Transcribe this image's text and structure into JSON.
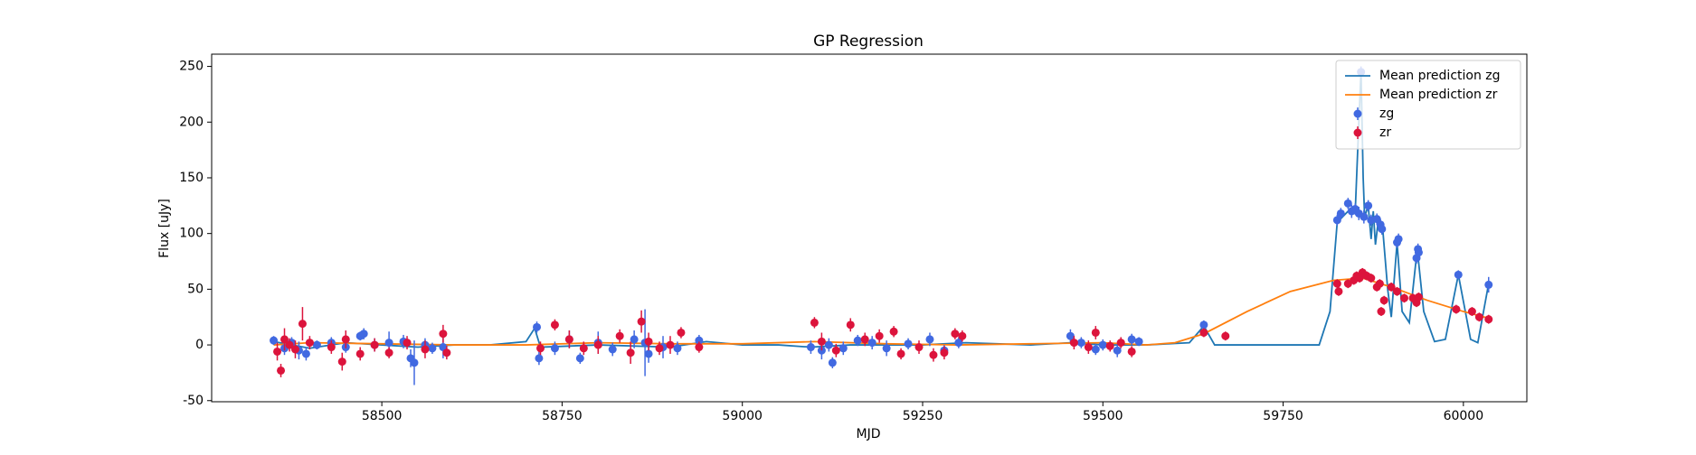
{
  "chart_data": {
    "type": "line",
    "title": "GP Regression",
    "xlabel": "MJD",
    "ylabel": "Flux [uJy]",
    "xlim": [
      58264,
      60088
    ],
    "ylim": [
      -51,
      261
    ],
    "xticks": [
      58500,
      58750,
      59000,
      59250,
      59500,
      59750,
      60000
    ],
    "yticks": [
      -50,
      0,
      50,
      100,
      150,
      200,
      250
    ],
    "legend": "upper right",
    "series": [
      {
        "name": "Mean prediction zg",
        "type": "line",
        "color": "#1f77b4",
        "x": [
          58350,
          58400,
          58450,
          58500,
          58550,
          58600,
          58650,
          58700,
          58712,
          58720,
          58800,
          58900,
          58950,
          59000,
          59050,
          59095,
          59150,
          59250,
          59310,
          59400,
          59455,
          59500,
          59560,
          59620,
          59640,
          59655,
          59700,
          59800,
          59815,
          59825,
          59840,
          59850,
          59855,
          59858,
          59861,
          59863,
          59868,
          59872,
          59875,
          59878,
          59882,
          59888,
          59895,
          59900,
          59908,
          59915,
          59925,
          59936,
          59945,
          59960,
          59975,
          59993,
          60010,
          60020,
          60035
        ],
        "values": [
          3,
          -3,
          2,
          0,
          -2,
          0,
          0,
          3,
          15,
          -2,
          0,
          -2,
          3,
          0,
          0,
          -2,
          0,
          0,
          2,
          0,
          2,
          0,
          0,
          2,
          17,
          0,
          0,
          0,
          30,
          110,
          120,
          120,
          200,
          245,
          150,
          115,
          125,
          95,
          120,
          90,
          112,
          105,
          50,
          25,
          92,
          30,
          20,
          86,
          30,
          3,
          5,
          63,
          5,
          2,
          55
        ]
      },
      {
        "name": "Mean prediction zr",
        "type": "line",
        "color": "#ff7f0e",
        "x": [
          58350,
          58400,
          58500,
          58600,
          58700,
          58800,
          58900,
          59000,
          59100,
          59200,
          59300,
          59400,
          59500,
          59560,
          59600,
          59640,
          59700,
          59760,
          59820,
          59860,
          59900,
          59950,
          60000,
          60035
        ],
        "values": [
          0,
          2,
          1,
          0,
          0,
          2,
          1,
          1,
          3,
          1,
          0,
          1,
          2,
          0,
          2,
          10,
          30,
          48,
          58,
          60,
          52,
          40,
          30,
          24
        ]
      },
      {
        "name": "zg",
        "type": "errorbar",
        "color": "#4169e1",
        "x": [
          58350,
          58365,
          58375,
          58385,
          58395,
          58410,
          58430,
          58450,
          58470,
          58475,
          58490,
          58510,
          58530,
          58540,
          58545,
          58560,
          58570,
          58585,
          58715,
          58718,
          58740,
          58760,
          58775,
          58800,
          58820,
          58850,
          58865,
          58870,
          58890,
          58910,
          58940,
          59095,
          59110,
          59120,
          59125,
          59140,
          59160,
          59180,
          59200,
          59230,
          59260,
          59280,
          59300,
          59455,
          59470,
          59490,
          59500,
          59520,
          59540,
          59550,
          59640,
          59825,
          59830,
          59840,
          59845,
          59850,
          59855,
          59858,
          59862,
          59868,
          59872,
          59880,
          59885,
          59887,
          59908,
          59910,
          59935,
          59937,
          59938,
          59993,
          60035
        ],
        "values": [
          4,
          -3,
          2,
          -5,
          -8,
          0,
          2,
          -2,
          8,
          10,
          0,
          2,
          3,
          -12,
          -16,
          0,
          -3,
          -2,
          16,
          -12,
          -3,
          5,
          -12,
          2,
          -4,
          5,
          2,
          -8,
          -2,
          -3,
          4,
          -2,
          -5,
          0,
          -16,
          -3,
          4,
          2,
          -3,
          1,
          5,
          -5,
          2,
          8,
          2,
          -4,
          0,
          -5,
          5,
          3,
          18,
          112,
          118,
          127,
          120,
          122,
          118,
          245,
          115,
          125,
          112,
          113,
          108,
          104,
          92,
          95,
          78,
          86,
          83,
          63,
          54
        ],
        "errors": [
          4,
          6,
          5,
          8,
          6,
          4,
          5,
          5,
          4,
          5,
          6,
          10,
          6,
          8,
          20,
          6,
          5,
          10,
          5,
          6,
          6,
          8,
          5,
          10,
          6,
          8,
          30,
          8,
          10,
          6,
          5,
          6,
          8,
          6,
          5,
          6,
          5,
          6,
          7,
          5,
          6,
          5,
          5,
          6,
          5,
          5,
          5,
          6,
          5,
          4,
          4,
          5,
          5,
          5,
          6,
          5,
          6,
          5,
          6,
          5,
          5,
          5,
          5,
          5,
          5,
          5,
          5,
          5,
          5,
          4,
          7
        ]
      },
      {
        "name": "zr",
        "type": "errorbar",
        "color": "#dc143c",
        "x": [
          58355,
          58360,
          58365,
          58372,
          58380,
          58390,
          58400,
          58430,
          58445,
          58450,
          58470,
          58490,
          58510,
          58535,
          58560,
          58585,
          58590,
          58720,
          58740,
          58760,
          58780,
          58800,
          58830,
          58845,
          58860,
          58870,
          58885,
          58900,
          58915,
          58940,
          59100,
          59110,
          59130,
          59150,
          59170,
          59190,
          59210,
          59220,
          59245,
          59265,
          59280,
          59295,
          59305,
          59460,
          59480,
          59490,
          59510,
          59525,
          59540,
          59640,
          59670,
          59825,
          59827,
          59840,
          59848,
          59852,
          59856,
          59860,
          59866,
          59872,
          59880,
          59884,
          59886,
          59890,
          59900,
          59908,
          59918,
          59930,
          59935,
          59938,
          59990,
          60012,
          60022,
          60035
        ],
        "values": [
          -6,
          -23,
          5,
          0,
          -4,
          19,
          2,
          -2,
          -15,
          5,
          -8,
          0,
          -7,
          2,
          -4,
          10,
          -7,
          -3,
          18,
          5,
          -3,
          0,
          8,
          -7,
          21,
          3,
          -3,
          0,
          11,
          -2,
          20,
          3,
          -5,
          18,
          5,
          8,
          12,
          -8,
          -2,
          -9,
          -7,
          10,
          8,
          2,
          -2,
          11,
          -1,
          2,
          -6,
          11,
          8,
          55,
          48,
          55,
          58,
          62,
          60,
          65,
          62,
          60,
          52,
          55,
          30,
          40,
          52,
          48,
          42,
          42,
          38,
          43,
          32,
          30,
          25,
          23
        ],
        "errors": [
          8,
          6,
          10,
          6,
          8,
          15,
          6,
          6,
          8,
          8,
          6,
          6,
          5,
          6,
          8,
          8,
          6,
          6,
          5,
          8,
          6,
          8,
          6,
          10,
          10,
          8,
          6,
          8,
          5,
          5,
          5,
          8,
          6,
          6,
          6,
          6,
          5,
          5,
          6,
          6,
          6,
          5,
          5,
          6,
          6,
          6,
          5,
          5,
          5,
          4,
          4,
          4,
          4,
          4,
          4,
          4,
          4,
          4,
          4,
          4,
          4,
          4,
          4,
          4,
          4,
          4,
          4,
          4,
          4,
          4,
          4,
          4,
          4,
          4
        ]
      }
    ]
  }
}
